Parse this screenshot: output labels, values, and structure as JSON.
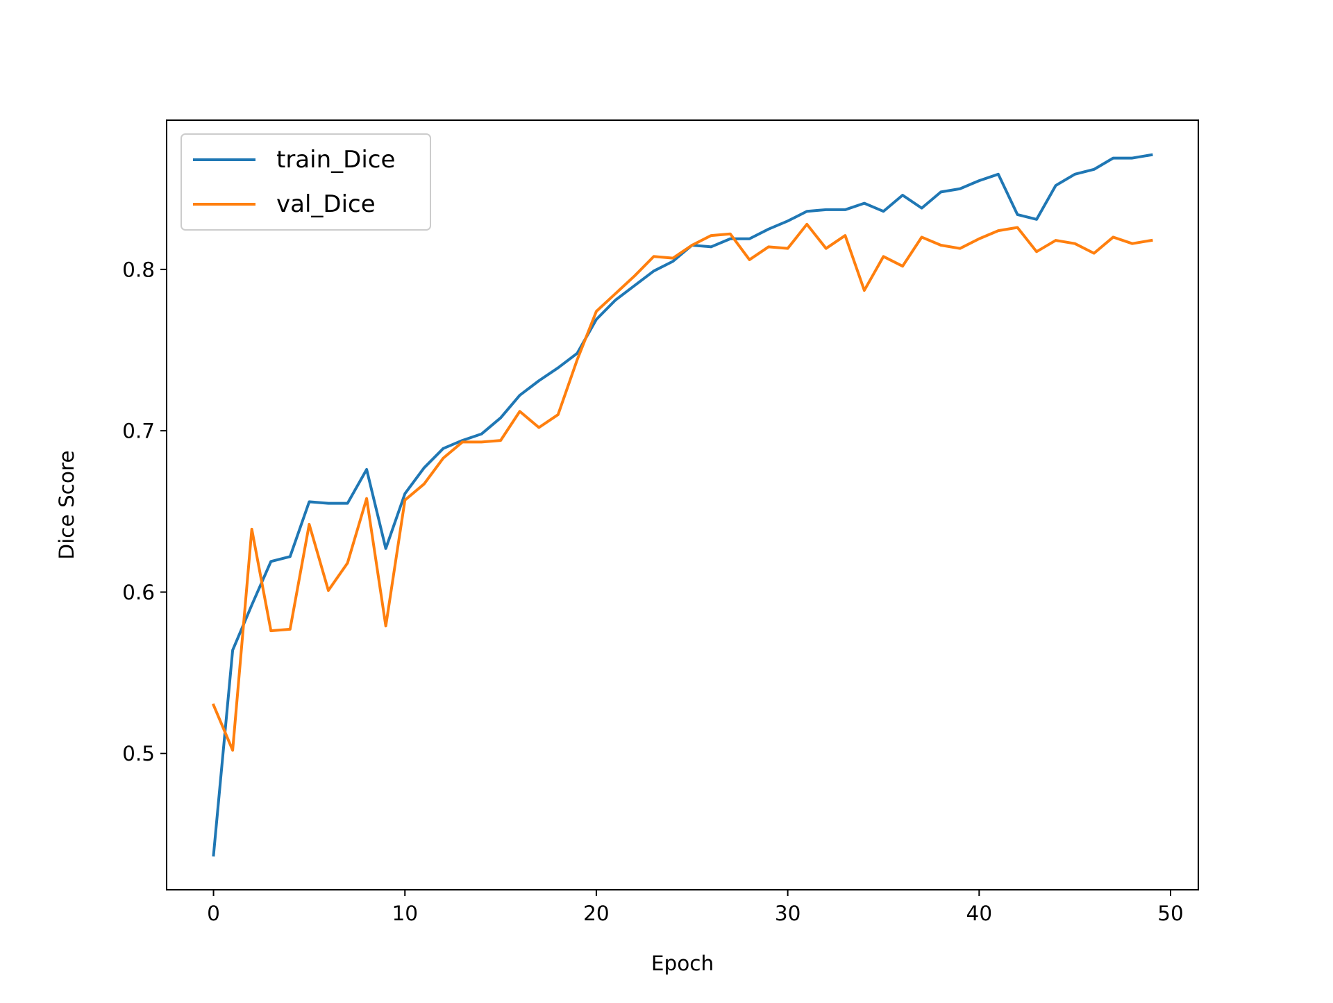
{
  "chart_data": {
    "type": "line",
    "title": "",
    "xlabel": "Epoch",
    "ylabel": "Dice Score",
    "xlim": [
      -2.45,
      51.45
    ],
    "ylim": [
      0.4155,
      0.8925
    ],
    "xticks": [
      0,
      10,
      20,
      30,
      40,
      50
    ],
    "yticks": [
      0.5,
      0.6,
      0.7,
      0.8
    ],
    "xtick_labels": [
      "0",
      "10",
      "20",
      "30",
      "40",
      "50"
    ],
    "ytick_labels": [
      "0.5",
      "0.6",
      "0.7",
      "0.8"
    ],
    "grid": false,
    "legend_position": "upper-left",
    "x": [
      0,
      1,
      2,
      3,
      4,
      5,
      6,
      7,
      8,
      9,
      10,
      11,
      12,
      13,
      14,
      15,
      16,
      17,
      18,
      19,
      20,
      21,
      22,
      23,
      24,
      25,
      26,
      27,
      28,
      29,
      30,
      31,
      32,
      33,
      34,
      35,
      36,
      37,
      38,
      39,
      40,
      41,
      42,
      43,
      44,
      45,
      46,
      47,
      48,
      49
    ],
    "series": [
      {
        "name": "train_Dice",
        "color": "#1f77b4",
        "values": [
          0.437,
          0.564,
          0.592,
          0.619,
          0.622,
          0.656,
          0.655,
          0.655,
          0.676,
          0.627,
          0.661,
          0.677,
          0.689,
          0.694,
          0.698,
          0.708,
          0.722,
          0.731,
          0.739,
          0.748,
          0.769,
          0.781,
          0.79,
          0.799,
          0.805,
          0.815,
          0.814,
          0.819,
          0.819,
          0.825,
          0.83,
          0.836,
          0.837,
          0.837,
          0.841,
          0.836,
          0.846,
          0.838,
          0.848,
          0.85,
          0.855,
          0.859,
          0.834,
          0.831,
          0.852,
          0.859,
          0.862,
          0.869,
          0.869,
          0.871
        ]
      },
      {
        "name": "val_Dice",
        "color": "#ff7f0e",
        "values": [
          0.53,
          0.502,
          0.639,
          0.576,
          0.577,
          0.642,
          0.601,
          0.618,
          0.658,
          0.579,
          0.657,
          0.667,
          0.683,
          0.693,
          0.693,
          0.694,
          0.712,
          0.702,
          0.71,
          0.744,
          0.774,
          0.785,
          0.796,
          0.808,
          0.807,
          0.815,
          0.821,
          0.822,
          0.806,
          0.814,
          0.813,
          0.828,
          0.813,
          0.821,
          0.787,
          0.808,
          0.802,
          0.82,
          0.815,
          0.813,
          0.819,
          0.824,
          0.826,
          0.811,
          0.818,
          0.816,
          0.81,
          0.82,
          0.816,
          0.818
        ]
      }
    ]
  }
}
